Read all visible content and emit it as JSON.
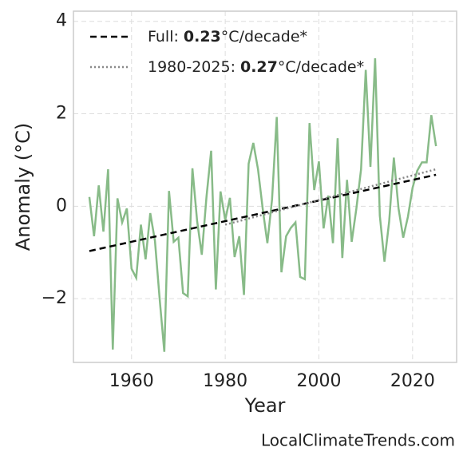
{
  "chart_data": {
    "type": "line",
    "xlabel": "Year",
    "ylabel": "Anomaly (°C)",
    "xlim": [
      1947.6,
      2029.4
    ],
    "ylim": [
      -3.38,
      4.22
    ],
    "xticks": [
      1960,
      1980,
      2000,
      2020
    ],
    "yticks": [
      {
        "value": -2,
        "label": "−2"
      },
      0,
      2,
      4
    ],
    "grid": true,
    "legend": "upper left",
    "x": [
      1951,
      1952,
      1953,
      1954,
      1955,
      1956,
      1957,
      1958,
      1959,
      1960,
      1961,
      1962,
      1963,
      1964,
      1965,
      1966,
      1967,
      1968,
      1969,
      1970,
      1971,
      1972,
      1973,
      1974,
      1975,
      1976,
      1977,
      1978,
      1979,
      1980,
      1981,
      1982,
      1983,
      1984,
      1985,
      1986,
      1987,
      1988,
      1989,
      1990,
      1991,
      1992,
      1993,
      1994,
      1995,
      1996,
      1997,
      1998,
      1999,
      2000,
      2001,
      2002,
      2003,
      2004,
      2005,
      2006,
      2007,
      2008,
      2009,
      2010,
      2011,
      2012,
      2013,
      2014,
      2015,
      2016,
      2017,
      2018,
      2019,
      2020,
      2021,
      2022,
      2023,
      2024,
      2025
    ],
    "values": [
      0.2,
      -0.65,
      0.45,
      -0.55,
      0.8,
      -3.1,
      0.17,
      -0.35,
      -0.05,
      -1.35,
      -1.55,
      -0.4,
      -1.15,
      -0.15,
      -0.75,
      -2.0,
      -3.15,
      0.33,
      -0.77,
      -0.68,
      -1.88,
      -1.95,
      0.82,
      -0.32,
      -1.05,
      0.2,
      1.2,
      -1.8,
      0.32,
      -0.3,
      0.18,
      -1.1,
      -0.65,
      -1.92,
      0.92,
      1.37,
      0.8,
      -0.05,
      -0.8,
      0.15,
      1.93,
      -1.43,
      -0.65,
      -0.47,
      -0.35,
      -1.53,
      -1.58,
      1.8,
      0.35,
      0.97,
      -0.48,
      0.23,
      -0.8,
      1.47,
      -1.12,
      0.57,
      -0.77,
      -0.05,
      0.8,
      2.95,
      0.85,
      3.2,
      -0.2,
      -1.2,
      -0.33,
      1.05,
      -0.05,
      -0.68,
      -0.23,
      0.4,
      0.77,
      0.95,
      0.95,
      1.97,
      1.3
    ],
    "color": "#88bb88",
    "series": [
      {
        "name": "Full:",
        "rate": 0.23,
        "rate_unit": "°C/decade*",
        "color": "#000000",
        "dash": "8,5",
        "x": [
          1951,
          2025
        ],
        "values": [
          -0.97,
          0.68
        ]
      },
      {
        "name": "1980-2025:",
        "rate": 0.27,
        "rate_unit": "°C/decade*",
        "color": "#888888",
        "dash": "2,3",
        "x": [
          1980,
          2025
        ],
        "values": [
          -0.4,
          0.8
        ]
      }
    ],
    "source": "LocalClimateTrends.com"
  }
}
